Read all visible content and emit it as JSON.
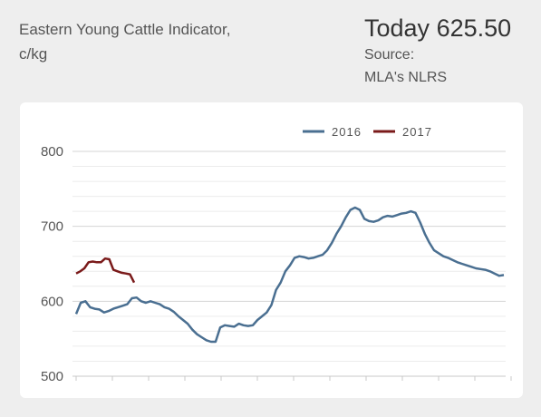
{
  "header": {
    "title_line1": "Eastern Young Cattle Indicator,",
    "title_line2": "c/kg",
    "today_label": "Today",
    "today_value": "625.50",
    "source_label": "Source:",
    "source_value": "MLA's NLRS"
  },
  "chart_data": {
    "type": "line",
    "title": "",
    "xlabel": "",
    "ylabel": "",
    "ylim": [
      500,
      800
    ],
    "yticks": [
      500,
      600,
      700,
      800
    ],
    "grid": true,
    "legend": "top-center",
    "x_tick_count": 13,
    "series": [
      {
        "name": "2016",
        "color": "#4a6f91",
        "points": [
          [
            0.0,
            583
          ],
          [
            1,
            598
          ],
          [
            2,
            600
          ],
          [
            3,
            592
          ],
          [
            4,
            590
          ],
          [
            5,
            589
          ],
          [
            6,
            585
          ],
          [
            7,
            587
          ],
          [
            8,
            590
          ],
          [
            9,
            592
          ],
          [
            10,
            594
          ],
          [
            11,
            596
          ],
          [
            12,
            604
          ],
          [
            13,
            605
          ],
          [
            14,
            600
          ],
          [
            15,
            598
          ],
          [
            16,
            600
          ],
          [
            17,
            598
          ],
          [
            18,
            596
          ],
          [
            19,
            592
          ],
          [
            20,
            590
          ],
          [
            21,
            586
          ],
          [
            22,
            580
          ],
          [
            23,
            575
          ],
          [
            24,
            570
          ],
          [
            25,
            562
          ],
          [
            26,
            556
          ],
          [
            27,
            552
          ],
          [
            28,
            548
          ],
          [
            29,
            546
          ],
          [
            30,
            546
          ],
          [
            31,
            565
          ],
          [
            32,
            568
          ],
          [
            33,
            567
          ],
          [
            34,
            566
          ],
          [
            35,
            570
          ],
          [
            36,
            568
          ],
          [
            37,
            567
          ],
          [
            38,
            568
          ],
          [
            39,
            575
          ],
          [
            40,
            580
          ],
          [
            41,
            585
          ],
          [
            42,
            595
          ],
          [
            43,
            615
          ],
          [
            44,
            625
          ],
          [
            45,
            640
          ],
          [
            46,
            648
          ],
          [
            47,
            658
          ],
          [
            48,
            660
          ],
          [
            49,
            659
          ],
          [
            50,
            657
          ],
          [
            51,
            658
          ],
          [
            52,
            660
          ],
          [
            53,
            662
          ],
          [
            54,
            668
          ],
          [
            55,
            678
          ],
          [
            56,
            690
          ],
          [
            57,
            700
          ],
          [
            58,
            712
          ],
          [
            59,
            722
          ],
          [
            60,
            725
          ],
          [
            61,
            722
          ],
          [
            62,
            710
          ],
          [
            63,
            707
          ],
          [
            64,
            706
          ],
          [
            65,
            708
          ],
          [
            66,
            712
          ],
          [
            67,
            714
          ],
          [
            68,
            713
          ],
          [
            69,
            715
          ],
          [
            70,
            717
          ],
          [
            71,
            718
          ],
          [
            72,
            720
          ],
          [
            73,
            718
          ],
          [
            74,
            705
          ],
          [
            75,
            690
          ],
          [
            76,
            678
          ],
          [
            77,
            668
          ],
          [
            78,
            664
          ],
          [
            79,
            660
          ],
          [
            80,
            658
          ],
          [
            81,
            655
          ],
          [
            82,
            652
          ],
          [
            83,
            650
          ],
          [
            84,
            648
          ],
          [
            85,
            646
          ],
          [
            86,
            644
          ],
          [
            87,
            643
          ],
          [
            88,
            642
          ],
          [
            89,
            640
          ],
          [
            90,
            637
          ],
          [
            91,
            634
          ],
          [
            92,
            635
          ]
        ]
      },
      {
        "name": "2017",
        "color": "#7a1a1a",
        "points": [
          [
            0,
            637
          ],
          [
            1,
            640
          ],
          [
            2,
            644
          ],
          [
            3,
            652
          ],
          [
            4,
            653
          ],
          [
            5,
            652
          ],
          [
            6,
            652
          ],
          [
            7,
            657
          ],
          [
            8,
            656
          ],
          [
            9,
            642
          ],
          [
            10,
            640
          ],
          [
            11,
            638
          ],
          [
            12,
            637
          ],
          [
            13,
            636
          ],
          [
            14,
            625
          ]
        ]
      }
    ]
  }
}
